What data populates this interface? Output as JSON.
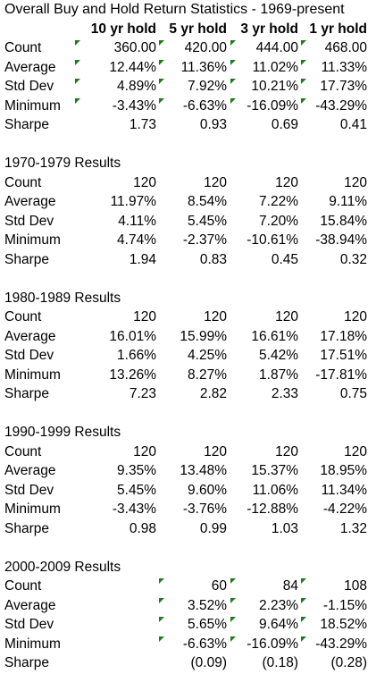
{
  "title": "Overall Buy and Hold Return Statistics - 1969-present",
  "headers": [
    "10 yr hold",
    "5 yr hold",
    "3 yr hold",
    "1 yr hold"
  ],
  "colors": {
    "error_indicator": "#1e7b1e"
  },
  "blocks": [
    {
      "title": "",
      "rows": [
        {
          "label": "Count",
          "values": [
            "360.00",
            "420.00",
            "444.00",
            "468.00"
          ],
          "flags": [
            1,
            1,
            1,
            1
          ]
        },
        {
          "label": "Average",
          "values": [
            "12.44%",
            "11.36%",
            "11.02%",
            "11.33%"
          ],
          "flags": [
            1,
            1,
            1,
            1
          ]
        },
        {
          "label": "Std Dev",
          "values": [
            "4.89%",
            "7.92%",
            "10.21%",
            "17.73%"
          ],
          "flags": [
            1,
            1,
            1,
            1
          ]
        },
        {
          "label": "Minimum",
          "values": [
            "-3.43%",
            "-6.63%",
            "-16.09%",
            "-43.29%"
          ],
          "flags": [
            1,
            1,
            1,
            1
          ]
        },
        {
          "label": "Sharpe",
          "values": [
            "1.73",
            "0.93",
            "0.69",
            "0.41"
          ],
          "flags": [
            0,
            0,
            0,
            0
          ]
        }
      ]
    },
    {
      "title": "1970-1979 Results",
      "rows": [
        {
          "label": "Count",
          "values": [
            "120",
            "120",
            "120",
            "120"
          ],
          "flags": [
            0,
            0,
            0,
            0
          ]
        },
        {
          "label": "Average",
          "values": [
            "11.97%",
            "8.54%",
            "7.22%",
            "9.11%"
          ],
          "flags": [
            0,
            0,
            0,
            0
          ]
        },
        {
          "label": "Std Dev",
          "values": [
            "4.11%",
            "5.45%",
            "7.20%",
            "15.84%"
          ],
          "flags": [
            0,
            0,
            0,
            0
          ]
        },
        {
          "label": "Minimum",
          "values": [
            "4.74%",
            "-2.37%",
            "-10.61%",
            "-38.94%"
          ],
          "flags": [
            0,
            0,
            0,
            0
          ]
        },
        {
          "label": "Sharpe",
          "values": [
            "1.94",
            "0.83",
            "0.45",
            "0.32"
          ],
          "flags": [
            0,
            0,
            0,
            0
          ]
        }
      ]
    },
    {
      "title": "1980-1989 Results",
      "rows": [
        {
          "label": "Count",
          "values": [
            "120",
            "120",
            "120",
            "120"
          ],
          "flags": [
            0,
            0,
            0,
            0
          ]
        },
        {
          "label": "Average",
          "values": [
            "16.01%",
            "15.99%",
            "16.61%",
            "17.18%"
          ],
          "flags": [
            0,
            0,
            0,
            0
          ]
        },
        {
          "label": "Std Dev",
          "values": [
            "1.66%",
            "4.25%",
            "5.42%",
            "17.51%"
          ],
          "flags": [
            0,
            0,
            0,
            0
          ]
        },
        {
          "label": "Minimum",
          "values": [
            "13.26%",
            "8.27%",
            "1.87%",
            "-17.81%"
          ],
          "flags": [
            0,
            0,
            0,
            0
          ]
        },
        {
          "label": "Sharpe",
          "values": [
            "7.23",
            "2.82",
            "2.33",
            "0.75"
          ],
          "flags": [
            0,
            0,
            0,
            0
          ]
        }
      ]
    },
    {
      "title": "1990-1999 Results",
      "rows": [
        {
          "label": "Count",
          "values": [
            "120",
            "120",
            "120",
            "120"
          ],
          "flags": [
            0,
            0,
            0,
            0
          ]
        },
        {
          "label": "Average",
          "values": [
            "9.35%",
            "13.48%",
            "15.37%",
            "18.95%"
          ],
          "flags": [
            0,
            0,
            0,
            0
          ]
        },
        {
          "label": "Std Dev",
          "values": [
            "5.45%",
            "9.60%",
            "11.06%",
            "11.34%"
          ],
          "flags": [
            0,
            0,
            0,
            0
          ]
        },
        {
          "label": "Minimum",
          "values": [
            "-3.43%",
            "-3.76%",
            "-12.88%",
            "-4.22%"
          ],
          "flags": [
            0,
            0,
            0,
            0
          ]
        },
        {
          "label": "Sharpe",
          "values": [
            "0.98",
            "0.99",
            "1.03",
            "1.32"
          ],
          "flags": [
            0,
            0,
            0,
            0
          ]
        }
      ]
    },
    {
      "title": "2000-2009 Results",
      "rows": [
        {
          "label": "Count",
          "values": [
            "",
            "60",
            "84",
            "108"
          ],
          "flags": [
            0,
            1,
            1,
            1
          ]
        },
        {
          "label": "Average",
          "values": [
            "",
            "3.52%",
            "2.23%",
            "-1.15%"
          ],
          "flags": [
            0,
            1,
            1,
            1
          ]
        },
        {
          "label": "Std Dev",
          "values": [
            "",
            "5.65%",
            "9.64%",
            "18.52%"
          ],
          "flags": [
            0,
            1,
            1,
            1
          ]
        },
        {
          "label": "Minimum",
          "values": [
            "",
            "-6.63%",
            "-16.09%",
            "-43.29%"
          ],
          "flags": [
            0,
            1,
            1,
            1
          ]
        },
        {
          "label": "Sharpe",
          "values": [
            "",
            "(0.09)",
            "(0.18)",
            "(0.28)"
          ],
          "flags": [
            0,
            0,
            0,
            0
          ]
        }
      ]
    }
  ]
}
